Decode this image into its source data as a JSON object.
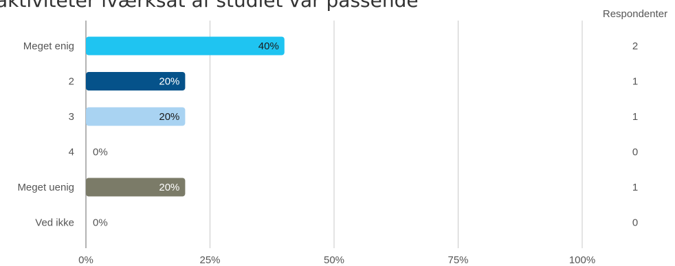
{
  "chart_data": {
    "type": "bar",
    "orientation": "horizontal",
    "title": "aktiviteter iværksat af studiet var passende",
    "categories": [
      "Meget enig",
      "2",
      "3",
      "4",
      "Meget uenig",
      "Ved ikke"
    ],
    "values": [
      40,
      20,
      20,
      0,
      20,
      0
    ],
    "value_labels": [
      "40%",
      "20%",
      "20%",
      "0%",
      "20%",
      "0%"
    ],
    "respondents_header": "Respondenter",
    "respondents": [
      "2",
      "1",
      "1",
      "0",
      "1",
      "0"
    ],
    "xticks": [
      {
        "value": 0,
        "label": "0%"
      },
      {
        "value": 25,
        "label": "25%"
      },
      {
        "value": 50,
        "label": "50%"
      },
      {
        "value": 75,
        "label": "75%"
      },
      {
        "value": 100,
        "label": "100%"
      }
    ],
    "xlim": [
      0,
      100
    ],
    "grid": true,
    "colors": [
      "#1fc4f1",
      "#05528a",
      "#a9d3f2",
      "#1fc4f1",
      "#7b7b68",
      "#1fc4f1"
    ],
    "label_colors": [
      "#1a1a1a",
      "#ffffff",
      "#1a1a1a",
      "#555555",
      "#ffffff",
      "#555555"
    ]
  }
}
